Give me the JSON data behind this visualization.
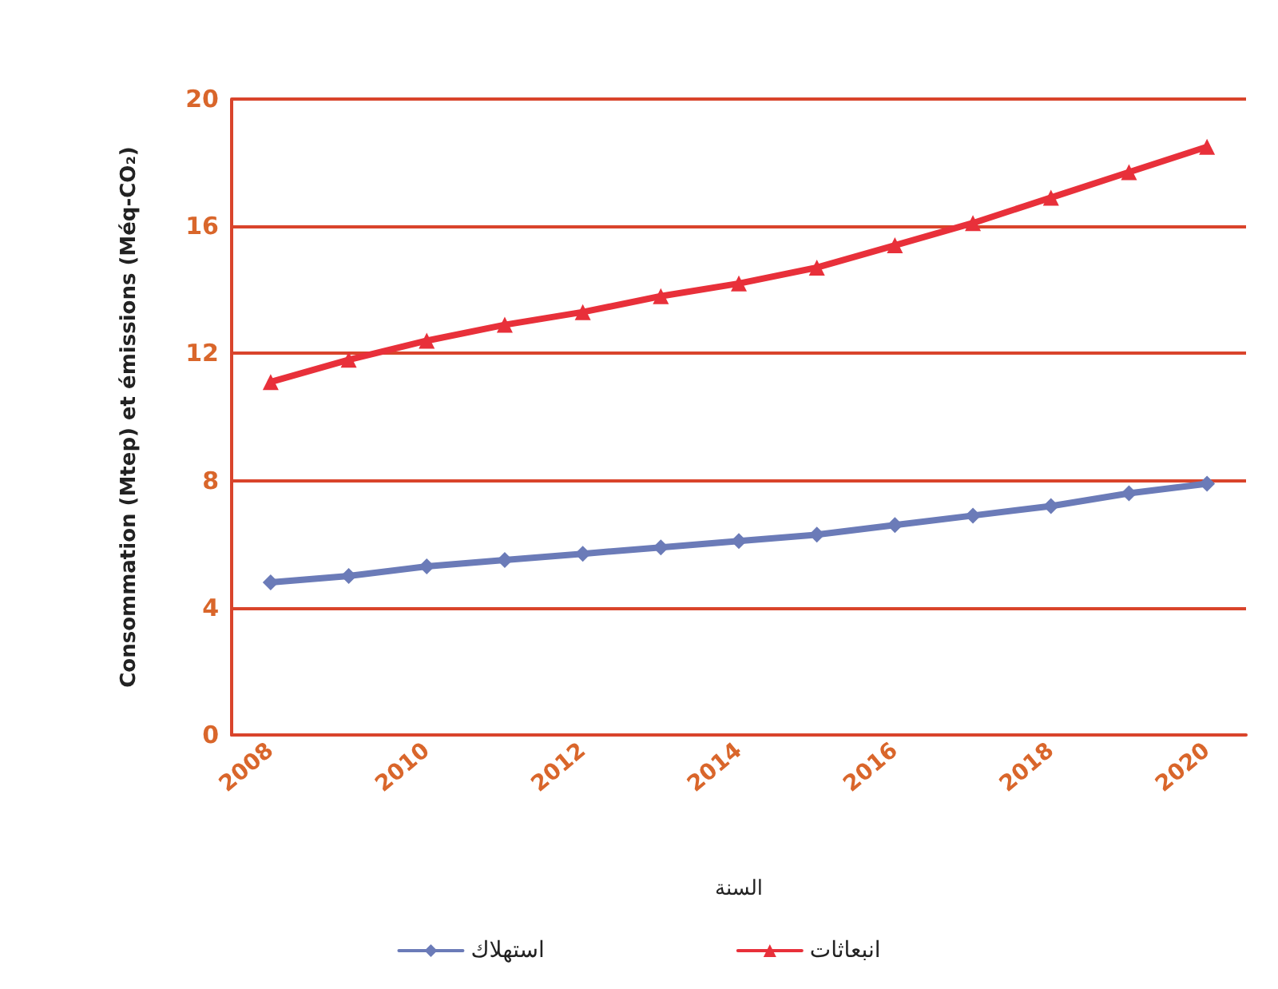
{
  "chart_data": {
    "type": "line",
    "xlabel": "السنة",
    "ylabel": "Consommation (Mtep) et émissions (Méq-CO₂)",
    "categories": [
      "2008",
      null,
      "2010",
      null,
      "2012",
      null,
      "2014",
      null,
      "2016",
      null,
      "2018",
      null,
      "2020"
    ],
    "series": [
      {
        "name": "استهلاك",
        "color": "#6b7bb8",
        "marker": "diamond",
        "values": [
          4.8,
          5.0,
          5.3,
          5.5,
          5.7,
          5.9,
          6.1,
          6.3,
          6.6,
          6.9,
          7.2,
          7.6,
          7.9
        ]
      },
      {
        "name": "انبعاثات",
        "color": "#e8303a",
        "marker": "triangle",
        "values": [
          11.1,
          11.8,
          12.4,
          12.9,
          13.3,
          13.8,
          14.2,
          14.7,
          15.4,
          16.1,
          16.9,
          17.7,
          18.5
        ]
      }
    ],
    "ylim": [
      0,
      20
    ],
    "yticks": [
      0,
      4,
      8,
      12,
      16,
      20
    ],
    "grid": "y",
    "legend": "bottom",
    "line_style": "solid"
  }
}
